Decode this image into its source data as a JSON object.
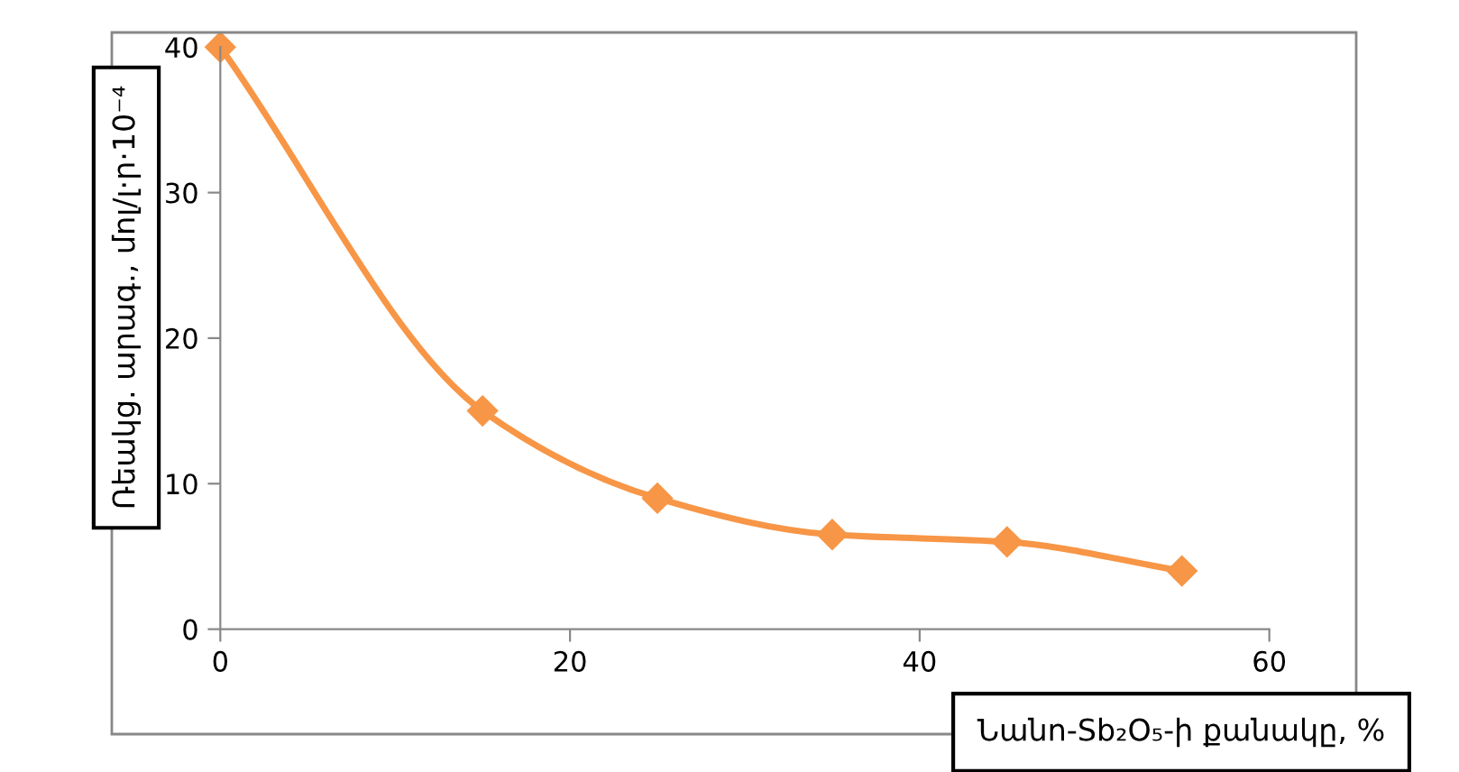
{
  "chart_data": {
    "type": "line",
    "xlabel": "Նանո-Sb₂O₅-ի քանակը, %",
    "ylabel": "Ռեակց. արագ., մոլ/լ·ր·10⁻⁴",
    "x": [
      0,
      15,
      25,
      35,
      45,
      55
    ],
    "series": [
      {
        "color": "#f79646",
        "values": [
          40,
          15,
          9,
          6.5,
          6,
          4
        ]
      }
    ],
    "xlim": [
      0,
      60
    ],
    "xticks": [
      0,
      20,
      40,
      60
    ],
    "ylim": [
      0,
      40
    ],
    "yticks": [
      0,
      10,
      20,
      30,
      40
    ],
    "grid": false,
    "legend": false,
    "marker": "diamond",
    "line_style": "solid"
  }
}
